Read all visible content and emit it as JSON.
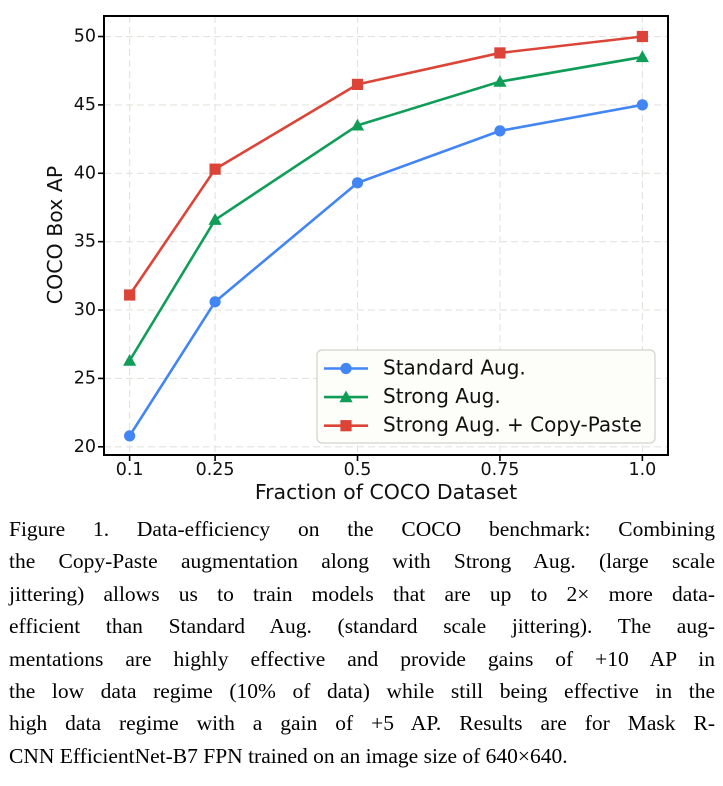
{
  "chart_data": {
    "type": "line",
    "title": "",
    "xlabel": "Fraction of COCO Dataset",
    "ylabel": "COCO Box AP",
    "x": [
      0.1,
      0.25,
      0.5,
      0.75,
      1.0
    ],
    "x_tick_labels": [
      "0.1",
      "0.25",
      "0.5",
      "0.75",
      "1.0"
    ],
    "y_ticks": [
      20,
      25,
      30,
      35,
      40,
      45,
      50
    ],
    "y_tick_labels": [
      "20",
      "25",
      "30",
      "35",
      "40",
      "45",
      "50"
    ],
    "xlim": [
      0.055,
      1.045
    ],
    "ylim": [
      19.4,
      51.5
    ],
    "grid": true,
    "grid_style": "dashed",
    "legend_position": "lower-right-inside",
    "series": [
      {
        "name": "Standard Aug.",
        "marker": "circle",
        "color": "#4285F4",
        "values": [
          20.8,
          30.6,
          39.3,
          43.1,
          45.0
        ]
      },
      {
        "name": "Strong Aug.",
        "marker": "triangle",
        "color": "#0F9D58",
        "values": [
          26.3,
          36.6,
          43.5,
          46.7,
          48.5
        ]
      },
      {
        "name": "Strong Aug. + Copy-Paste",
        "marker": "square",
        "color": "#DB4437",
        "values": [
          31.1,
          40.3,
          46.5,
          48.8,
          50.0
        ]
      }
    ]
  },
  "colors": {
    "spine": "#000000",
    "grid": "#e3e3de",
    "tick_text": "#111111",
    "legend_bg": "#fdfdfa",
    "legend_border": "#d2d2cd",
    "caption_text": "#000000"
  },
  "figure": {
    "caption_lines": [
      "Figure 1. Data-efficiency on the COCO benchmark: Combining",
      "the Copy-Paste augmentation along with Strong Aug. (large scale",
      "jittering) allows us to train models that are up to 2× more data-",
      "efficient than Standard Aug. (standard scale jittering). The aug-",
      "mentations are highly effective and provide gains of +10 AP in",
      "the low data regime (10% of data) while still being effective in the",
      "high data regime with a gain of +5 AP. Results are for Mask R-",
      "CNN EfficientNet-B7 FPN trained on an image size of 640×640."
    ]
  }
}
